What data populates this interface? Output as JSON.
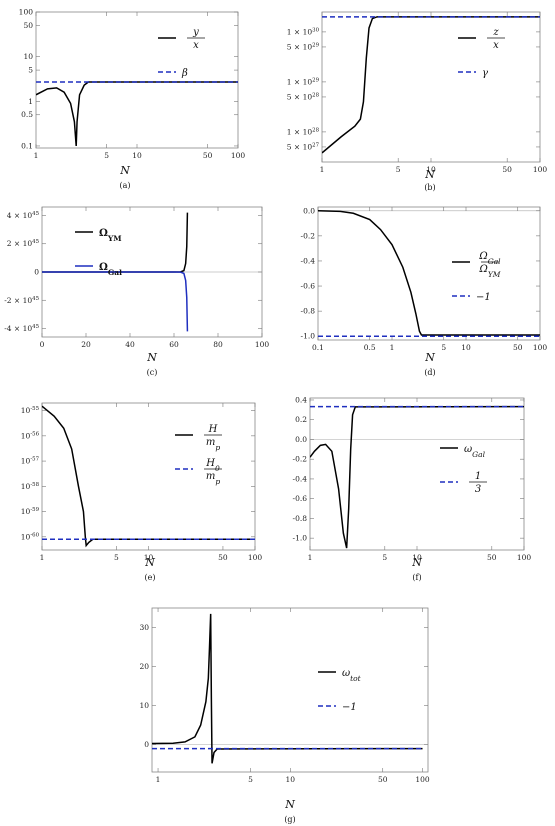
{
  "colors": {
    "black": "#000000",
    "blue": "#1f2fbf",
    "frame": "#888888"
  },
  "chart_data": [
    {
      "id": "a",
      "type": "line",
      "caption": "(a)",
      "xlabel": "N",
      "xscale": "log",
      "yscale": "log",
      "xlim": [
        1,
        100
      ],
      "ylim": [
        0.09,
        100
      ],
      "xticks": [
        [
          1,
          "1"
        ],
        [
          5,
          "5"
        ],
        [
          10,
          "10"
        ],
        [
          50,
          "50"
        ],
        [
          100,
          "100"
        ]
      ],
      "yticks": [
        [
          0.1,
          "0.1"
        ],
        [
          0.5,
          "0.5"
        ],
        [
          1,
          "1"
        ],
        [
          5,
          "5"
        ],
        [
          10,
          "10"
        ],
        [
          50,
          "50"
        ],
        [
          100,
          "100"
        ]
      ],
      "series": [
        {
          "legend": {
            "type": "frac",
            "num": "y",
            "den": "x"
          },
          "color": "#000000",
          "dash": "solid",
          "points": [
            [
              1,
              1.4
            ],
            [
              1.3,
              1.9
            ],
            [
              1.6,
              2.0
            ],
            [
              1.9,
              1.6
            ],
            [
              2.2,
              0.9
            ],
            [
              2.4,
              0.35
            ],
            [
              2.5,
              0.1
            ],
            [
              2.55,
              0.35
            ],
            [
              2.7,
              1.4
            ],
            [
              3.0,
              2.3
            ],
            [
              3.3,
              2.7
            ],
            [
              3.6,
              2.7
            ],
            [
              100,
              2.7
            ]
          ]
        },
        {
          "legend": {
            "type": "text",
            "text": "β"
          },
          "color": "#1f2fbf",
          "dash": "dashed",
          "points": [
            [
              1,
              2.7
            ],
            [
              100,
              2.7
            ]
          ]
        }
      ]
    },
    {
      "id": "b",
      "type": "line",
      "caption": "(b)",
      "xlabel": "N",
      "xscale": "log",
      "yscale": "log",
      "xlim": [
        1,
        100
      ],
      "ylim": [
        2.5e+27,
        2.5e+30
      ],
      "xticks": [
        [
          1,
          "1"
        ],
        [
          5,
          "5"
        ],
        [
          10,
          "10"
        ],
        [
          50,
          "50"
        ],
        [
          100,
          "100"
        ]
      ],
      "yticks": [
        [
          5e+27,
          "5 × 10^27"
        ],
        [
          1e+28,
          "1 × 10^28"
        ],
        [
          5e+28,
          "5 × 10^28"
        ],
        [
          1e+29,
          "1 × 10^29"
        ],
        [
          5e+29,
          "5 × 10^29"
        ],
        [
          1e+30,
          "1 × 10^30"
        ]
      ],
      "series": [
        {
          "legend": {
            "type": "frac",
            "num": "z",
            "den": "x"
          },
          "color": "#000000",
          "dash": "solid",
          "points": [
            [
              1,
              3.8e+27
            ],
            [
              1.5,
              8e+27
            ],
            [
              2.0,
              1.3e+28
            ],
            [
              2.25,
              1.8e+28
            ],
            [
              2.4,
              4e+28
            ],
            [
              2.55,
              3e+29
            ],
            [
              2.7,
              1.2e+30
            ],
            [
              2.9,
              1.85e+30
            ],
            [
              3.2,
              2e+30
            ],
            [
              100,
              2e+30
            ]
          ]
        },
        {
          "legend": {
            "type": "text",
            "text": "γ"
          },
          "color": "#1f2fbf",
          "dash": "dashed",
          "points": [
            [
              1,
              2e+30
            ],
            [
              100,
              2e+30
            ]
          ]
        }
      ]
    },
    {
      "id": "c",
      "type": "line",
      "caption": "(c)",
      "xlabel": "N",
      "xscale": "linear",
      "yscale": "linear",
      "xlim": [
        0,
        100
      ],
      "ylim": [
        -4.6e+45,
        4.6e+45
      ],
      "zero_line": true,
      "xticks": [
        [
          0,
          "0"
        ],
        [
          20,
          "20"
        ],
        [
          40,
          "40"
        ],
        [
          60,
          "60"
        ],
        [
          80,
          "80"
        ],
        [
          100,
          "100"
        ]
      ],
      "yticks": [
        [
          -4e+45,
          "-4 × 10^45"
        ],
        [
          -2e+45,
          "-2 × 10^45"
        ],
        [
          0,
          "0"
        ],
        [
          2e+45,
          "2 × 10^45"
        ],
        [
          4e+45,
          "4 × 10^45"
        ]
      ],
      "series": [
        {
          "legend": {
            "type": "text",
            "text": "Ω_YM",
            "bold": true
          },
          "color": "#000000",
          "dash": "solid",
          "points": [
            [
              0,
              0
            ],
            [
              60,
              0
            ],
            [
              63,
              1e+43
            ],
            [
              64.5,
              1e+44
            ],
            [
              65.3,
              6e+44
            ],
            [
              65.8,
              1.8e+45
            ],
            [
              66.1,
              4.2e+45
            ]
          ]
        },
        {
          "legend": {
            "type": "text",
            "text": "Ω_Gal",
            "bold": true
          },
          "color": "#1f2fbf",
          "dash": "solid",
          "points": [
            [
              0,
              0
            ],
            [
              60,
              0
            ],
            [
              63,
              -1e+43
            ],
            [
              64.5,
              -1e+44
            ],
            [
              65.3,
              -6e+44
            ],
            [
              65.8,
              -1.8e+45
            ],
            [
              66.1,
              -4.2e+45
            ]
          ]
        }
      ]
    },
    {
      "id": "d",
      "type": "line",
      "caption": "(d)",
      "xlabel": "N",
      "xscale": "log",
      "yscale": "linear",
      "xlim": [
        0.1,
        100
      ],
      "ylim": [
        -1.03,
        0.03
      ],
      "zero_line": true,
      "xticks": [
        [
          0.1,
          "0.1"
        ],
        [
          0.5,
          "0.5"
        ],
        [
          1,
          "1"
        ],
        [
          5,
          "5"
        ],
        [
          10,
          "10"
        ],
        [
          50,
          "50"
        ],
        [
          100,
          "100"
        ]
      ],
      "yticks": [
        [
          -1.0,
          "-1.0"
        ],
        [
          -0.8,
          "-0.8"
        ],
        [
          -0.6,
          "-0.6"
        ],
        [
          -0.4,
          "-0.4"
        ],
        [
          -0.2,
          "-0.2"
        ],
        [
          0,
          "0.0"
        ]
      ],
      "series": [
        {
          "legend": {
            "type": "frac",
            "num": "Ω_Gal",
            "den": "Ω_YM"
          },
          "color": "#000000",
          "dash": "solid",
          "points": [
            [
              0.1,
              0
            ],
            [
              0.2,
              -0.005
            ],
            [
              0.3,
              -0.02
            ],
            [
              0.5,
              -0.07
            ],
            [
              0.7,
              -0.15
            ],
            [
              1.0,
              -0.27
            ],
            [
              1.4,
              -0.45
            ],
            [
              1.8,
              -0.65
            ],
            [
              2.1,
              -0.82
            ],
            [
              2.35,
              -0.96
            ],
            [
              2.5,
              -0.99
            ],
            [
              100,
              -0.99
            ]
          ]
        },
        {
          "legend": {
            "type": "text",
            "text": "−1"
          },
          "color": "#1f2fbf",
          "dash": "dashed",
          "points": [
            [
              0.1,
              -1
            ],
            [
              100,
              -1
            ]
          ]
        }
      ]
    },
    {
      "id": "e",
      "type": "line",
      "caption": "(e)",
      "xlabel": "N",
      "xscale": "log",
      "yscale": "log",
      "xlim": [
        1,
        100
      ],
      "ylim": [
        3e-61,
        2e-55
      ],
      "xticks": [
        [
          1,
          "1"
        ],
        [
          5,
          "5"
        ],
        [
          10,
          "10"
        ],
        [
          50,
          "50"
        ],
        [
          100,
          "100"
        ]
      ],
      "yticks": [
        [
          1e-60,
          "10^-60"
        ],
        [
          1e-59,
          "10^-59"
        ],
        [
          1e-58,
          "10^-58"
        ],
        [
          1e-57,
          "10^-57"
        ],
        [
          1e-56,
          "10^-56"
        ],
        [
          1e-55,
          "10^-55"
        ]
      ],
      "series": [
        {
          "legend": {
            "type": "frac",
            "num": "H",
            "den": "m_p"
          },
          "color": "#000000",
          "dash": "solid",
          "points": [
            [
              1,
              1.5e-55
            ],
            [
              1.3,
              6e-56
            ],
            [
              1.6,
              2e-56
            ],
            [
              1.9,
              3e-57
            ],
            [
              2.2,
              1e-58
            ],
            [
              2.45,
              1e-59
            ],
            [
              2.55,
              1e-60
            ],
            [
              2.6,
              4.5e-61
            ],
            [
              2.75,
              6e-61
            ],
            [
              3.0,
              8e-61
            ],
            [
              100,
              8e-61
            ]
          ]
        },
        {
          "legend": {
            "type": "frac",
            "num": "H_0",
            "den": "m_p"
          },
          "color": "#1f2fbf",
          "dash": "dashed",
          "points": [
            [
              1,
              8e-61
            ],
            [
              100,
              8e-61
            ]
          ]
        }
      ]
    },
    {
      "id": "f",
      "type": "line",
      "caption": "(f)",
      "xlabel": "N",
      "xscale": "log",
      "yscale": "linear",
      "xlim": [
        1,
        100
      ],
      "ylim": [
        -1.12,
        0.42
      ],
      "zero_line": true,
      "xticks": [
        [
          1,
          "1"
        ],
        [
          5,
          "5"
        ],
        [
          10,
          "10"
        ],
        [
          50,
          "50"
        ],
        [
          100,
          "100"
        ]
      ],
      "yticks": [
        [
          -1.0,
          "-1.0"
        ],
        [
          -0.8,
          "-0.8"
        ],
        [
          -0.6,
          "-0.6"
        ],
        [
          -0.4,
          "-0.4"
        ],
        [
          -0.2,
          "-0.2"
        ],
        [
          0,
          "0.0"
        ],
        [
          0.2,
          "0.2"
        ],
        [
          0.4,
          "0.4"
        ]
      ],
      "series": [
        {
          "legend": {
            "type": "text",
            "text": "ω_Gal"
          },
          "color": "#000000",
          "dash": "solid",
          "points": [
            [
              1,
              -0.18
            ],
            [
              1.1,
              -0.12
            ],
            [
              1.25,
              -0.06
            ],
            [
              1.4,
              -0.05
            ],
            [
              1.6,
              -0.12
            ],
            [
              1.85,
              -0.5
            ],
            [
              2.05,
              -0.95
            ],
            [
              2.2,
              -1.1
            ],
            [
              2.3,
              -0.7
            ],
            [
              2.4,
              -0.1
            ],
            [
              2.5,
              0.25
            ],
            [
              2.65,
              0.33
            ],
            [
              100,
              0.333
            ]
          ]
        },
        {
          "legend": {
            "type": "frac",
            "num": "1",
            "den": "3",
            "upright": true
          },
          "color": "#1f2fbf",
          "dash": "dashed",
          "points": [
            [
              1,
              0.333
            ],
            [
              100,
              0.333
            ]
          ]
        }
      ]
    },
    {
      "id": "g",
      "type": "line",
      "caption": "(g)",
      "xlabel": "N",
      "xscale": "log",
      "yscale": "linear",
      "xlim": [
        0.9,
        110
      ],
      "ylim": [
        -7,
        35
      ],
      "zero_line": true,
      "xticks": [
        [
          1,
          "1"
        ],
        [
          5,
          "5"
        ],
        [
          10,
          "10"
        ],
        [
          50,
          "50"
        ],
        [
          100,
          "100"
        ]
      ],
      "yticks": [
        [
          0,
          "0"
        ],
        [
          10,
          "10"
        ],
        [
          20,
          "20"
        ],
        [
          30,
          "30"
        ]
      ],
      "series": [
        {
          "legend": {
            "type": "text",
            "text": "ω_tot"
          },
          "color": "#000000",
          "dash": "solid",
          "points": [
            [
              0.9,
              0.3
            ],
            [
              1.3,
              0.35
            ],
            [
              1.6,
              0.7
            ],
            [
              1.9,
              2
            ],
            [
              2.1,
              5
            ],
            [
              2.3,
              11
            ],
            [
              2.4,
              17
            ],
            [
              2.45,
              25
            ],
            [
              2.5,
              33.5
            ],
            [
              2.53,
              12
            ],
            [
              2.56,
              -4.8
            ],
            [
              2.65,
              -2
            ],
            [
              2.8,
              -1.1
            ],
            [
              100,
              -1.0
            ]
          ]
        },
        {
          "legend": {
            "type": "text",
            "text": "−1"
          },
          "color": "#1f2fbf",
          "dash": "dashed",
          "points": [
            [
              0.9,
              -1.0
            ],
            [
              100,
              -1.0
            ]
          ]
        }
      ]
    }
  ]
}
